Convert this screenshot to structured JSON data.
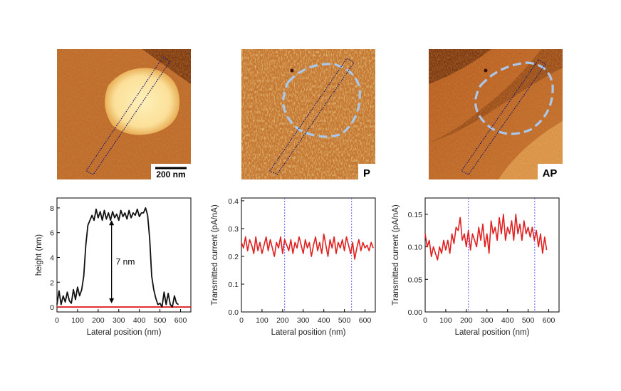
{
  "colors": {
    "afm_dark": "#8a3f12",
    "afm_mid": "#c46a2a",
    "afm_light": "#f4d08a",
    "island": "#fbe3a0",
    "scan_box": "#1a1a6e",
    "dashed_oval": "#a9c8ec",
    "height_trace": "#111111",
    "current_trace": "#e02020",
    "baseline": "#e02020",
    "marker_line": "#3b3bff"
  },
  "images": [
    {
      "id": "height",
      "scale_bar_label": "200 nm",
      "label": ""
    },
    {
      "id": "parallel",
      "scale_bar_label": "",
      "label": "P"
    },
    {
      "id": "antiparallel",
      "scale_bar_label": "",
      "label": "AP"
    }
  ],
  "chart_data": [
    {
      "type": "line",
      "title": "",
      "xlabel": "Lateral position (nm)",
      "ylabel": "height (nm)",
      "xlim": [
        0,
        650
      ],
      "ylim": [
        -0.4,
        8.8
      ],
      "xticks": [
        0,
        100,
        200,
        300,
        400,
        500,
        600
      ],
      "yticks": [
        0,
        2,
        4,
        6,
        8
      ],
      "annotation": {
        "text": "7 nm",
        "x": 265,
        "y_from": 0.3,
        "y_to": 7.0
      },
      "baseline": {
        "y": 0,
        "x0": 0,
        "x1": 650
      },
      "series": [
        {
          "name": "height",
          "x": [
            0,
            10,
            20,
            30,
            40,
            50,
            60,
            70,
            80,
            90,
            100,
            110,
            120,
            130,
            140,
            150,
            160,
            170,
            180,
            190,
            200,
            210,
            220,
            230,
            240,
            250,
            260,
            270,
            280,
            290,
            300,
            310,
            320,
            330,
            340,
            350,
            360,
            370,
            380,
            390,
            400,
            410,
            420,
            430,
            440,
            450,
            460,
            470,
            480,
            490,
            500,
            510,
            520,
            530,
            540,
            550,
            560,
            570,
            580,
            590
          ],
          "y": [
            0.2,
            1.3,
            0.2,
            0.9,
            0.4,
            1.2,
            0.5,
            0.3,
            1.4,
            0.6,
            1.6,
            0.9,
            1.4,
            2.5,
            5.0,
            6.6,
            7.0,
            7.4,
            7.0,
            7.9,
            7.2,
            7.7,
            7.0,
            7.8,
            7.1,
            7.6,
            7.0,
            7.7,
            7.2,
            7.5,
            7.0,
            7.8,
            7.3,
            7.6,
            7.1,
            7.8,
            7.2,
            7.6,
            7.4,
            7.9,
            7.3,
            7.6,
            7.6,
            8.0,
            7.4,
            5.5,
            2.5,
            1.4,
            0.7,
            0.2,
            0.3,
            0.0,
            1.2,
            0.2,
            1.1,
            0.2,
            0.0,
            0.9,
            0.3,
            0.2
          ]
        }
      ]
    },
    {
      "type": "line",
      "title": "",
      "xlabel": "Lateral position (nm)",
      "ylabel": "Transmitted current (pA/nA)",
      "xlim": [
        0,
        650
      ],
      "ylim": [
        0,
        0.41
      ],
      "xticks": [
        0,
        100,
        200,
        300,
        400,
        500,
        600
      ],
      "yticks": [
        0.0,
        0.1,
        0.2,
        0.3,
        0.4
      ],
      "markers_x": [
        210,
        535
      ],
      "series": [
        {
          "name": "P",
          "x": [
            0,
            10,
            20,
            30,
            40,
            50,
            60,
            70,
            80,
            90,
            100,
            110,
            120,
            130,
            140,
            150,
            160,
            170,
            180,
            190,
            200,
            210,
            220,
            230,
            240,
            250,
            260,
            270,
            280,
            290,
            300,
            310,
            320,
            330,
            340,
            350,
            360,
            370,
            380,
            390,
            400,
            410,
            420,
            430,
            440,
            450,
            460,
            470,
            480,
            490,
            500,
            510,
            520,
            530,
            540,
            550,
            560,
            570,
            580,
            590,
            600,
            610,
            620,
            630,
            640
          ],
          "y": [
            0.25,
            0.23,
            0.27,
            0.22,
            0.26,
            0.24,
            0.21,
            0.27,
            0.22,
            0.25,
            0.21,
            0.24,
            0.27,
            0.22,
            0.26,
            0.23,
            0.2,
            0.25,
            0.23,
            0.27,
            0.21,
            0.26,
            0.24,
            0.22,
            0.26,
            0.21,
            0.25,
            0.23,
            0.27,
            0.24,
            0.21,
            0.26,
            0.23,
            0.25,
            0.2,
            0.24,
            0.27,
            0.22,
            0.25,
            0.21,
            0.28,
            0.24,
            0.2,
            0.26,
            0.23,
            0.27,
            0.21,
            0.25,
            0.23,
            0.26,
            0.22,
            0.27,
            0.24,
            0.21,
            0.25,
            0.19,
            0.23,
            0.26,
            0.22,
            0.25,
            0.23,
            0.24,
            0.22,
            0.25,
            0.23
          ]
        }
      ]
    },
    {
      "type": "line",
      "title": "",
      "xlabel": "Lateral position (nm)",
      "ylabel": "Transmitted current (pA/nA)",
      "xlim": [
        0,
        650
      ],
      "ylim": [
        0,
        0.175
      ],
      "xticks": [
        0,
        100,
        200,
        300,
        400,
        500,
        600
      ],
      "yticks": [
        0.0,
        0.05,
        0.1,
        0.15
      ],
      "ytick_labels": [
        "0.00",
        "0.05",
        "0.10",
        "0.15"
      ],
      "markers_x": [
        210,
        532
      ],
      "series": [
        {
          "name": "AP",
          "x": [
            0,
            10,
            20,
            30,
            40,
            50,
            60,
            70,
            80,
            90,
            100,
            110,
            120,
            130,
            140,
            150,
            160,
            170,
            180,
            190,
            200,
            210,
            220,
            230,
            240,
            250,
            260,
            270,
            280,
            290,
            300,
            310,
            320,
            330,
            340,
            350,
            360,
            370,
            380,
            390,
            400,
            410,
            420,
            430,
            440,
            450,
            460,
            470,
            480,
            490,
            500,
            510,
            520,
            530,
            540,
            550,
            560,
            570,
            580,
            590
          ],
          "y": [
            0.12,
            0.1,
            0.11,
            0.085,
            0.1,
            0.09,
            0.08,
            0.1,
            0.09,
            0.11,
            0.095,
            0.11,
            0.09,
            0.12,
            0.105,
            0.13,
            0.125,
            0.145,
            0.11,
            0.12,
            0.1,
            0.125,
            0.095,
            0.12,
            0.11,
            0.1,
            0.13,
            0.11,
            0.135,
            0.1,
            0.12,
            0.09,
            0.14,
            0.12,
            0.13,
            0.11,
            0.145,
            0.12,
            0.15,
            0.11,
            0.13,
            0.12,
            0.14,
            0.11,
            0.15,
            0.12,
            0.135,
            0.11,
            0.14,
            0.12,
            0.13,
            0.115,
            0.13,
            0.11,
            0.125,
            0.1,
            0.12,
            0.09,
            0.115,
            0.095
          ]
        }
      ]
    }
  ]
}
